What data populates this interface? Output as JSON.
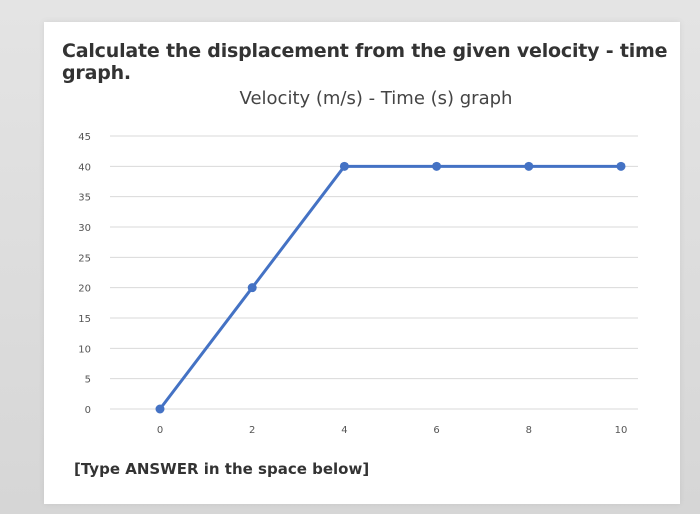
{
  "question": "Calculate the displacement from the given velocity - time graph.",
  "answer_prompt": "[Type ANSWER in the space below]",
  "chart_data": {
    "type": "line",
    "title": "Velocity (m/s) - Time (s) graph",
    "x": [
      0,
      2,
      4,
      6,
      8,
      10
    ],
    "series": [
      {
        "values": [
          0,
          20,
          40,
          40,
          40,
          40
        ]
      }
    ],
    "x_ticks": [
      "0",
      "2",
      "4",
      "6",
      "8",
      "10"
    ],
    "y_ticks": [
      "0",
      "5",
      "10",
      "15",
      "20",
      "25",
      "30",
      "35",
      "40",
      "45"
    ],
    "xlim": [
      0,
      10
    ],
    "ylim": [
      0,
      45
    ],
    "grid": true,
    "line_color": "#4472c4",
    "grid_color": "#d9d9d9"
  }
}
